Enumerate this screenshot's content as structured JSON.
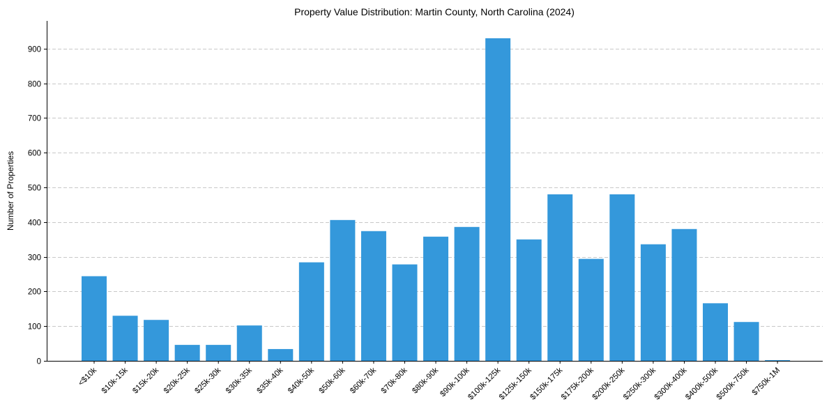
{
  "chart_data": {
    "type": "bar",
    "title": "Property Value Distribution: Martin County, North Carolina (2024)",
    "xlabel": "",
    "ylabel": "Number of Properties",
    "ylim": [
      0,
      980
    ],
    "yticks": [
      0,
      100,
      200,
      300,
      400,
      500,
      600,
      700,
      800,
      900
    ],
    "grid": "y-dashed",
    "bar_color": "#3498db",
    "categories": [
      "<$10k",
      "$10k-15k",
      "$15k-20k",
      "$20k-25k",
      "$25k-30k",
      "$30k-35k",
      "$35k-40k",
      "$40k-50k",
      "$50k-60k",
      "$60k-70k",
      "$70k-80k",
      "$80k-90k",
      "$90k-100k",
      "$100k-125k",
      "$125k-150k",
      "$150k-175k",
      "$175k-200k",
      "$200k-250k",
      "$250k-300k",
      "$300k-400k",
      "$400k-500k",
      "$500k-750k",
      "$750k-1M"
    ],
    "values": [
      244,
      130,
      118,
      46,
      46,
      102,
      34,
      284,
      406,
      374,
      278,
      358,
      386,
      930,
      350,
      480,
      294,
      480,
      336,
      380,
      166,
      112,
      2
    ]
  }
}
